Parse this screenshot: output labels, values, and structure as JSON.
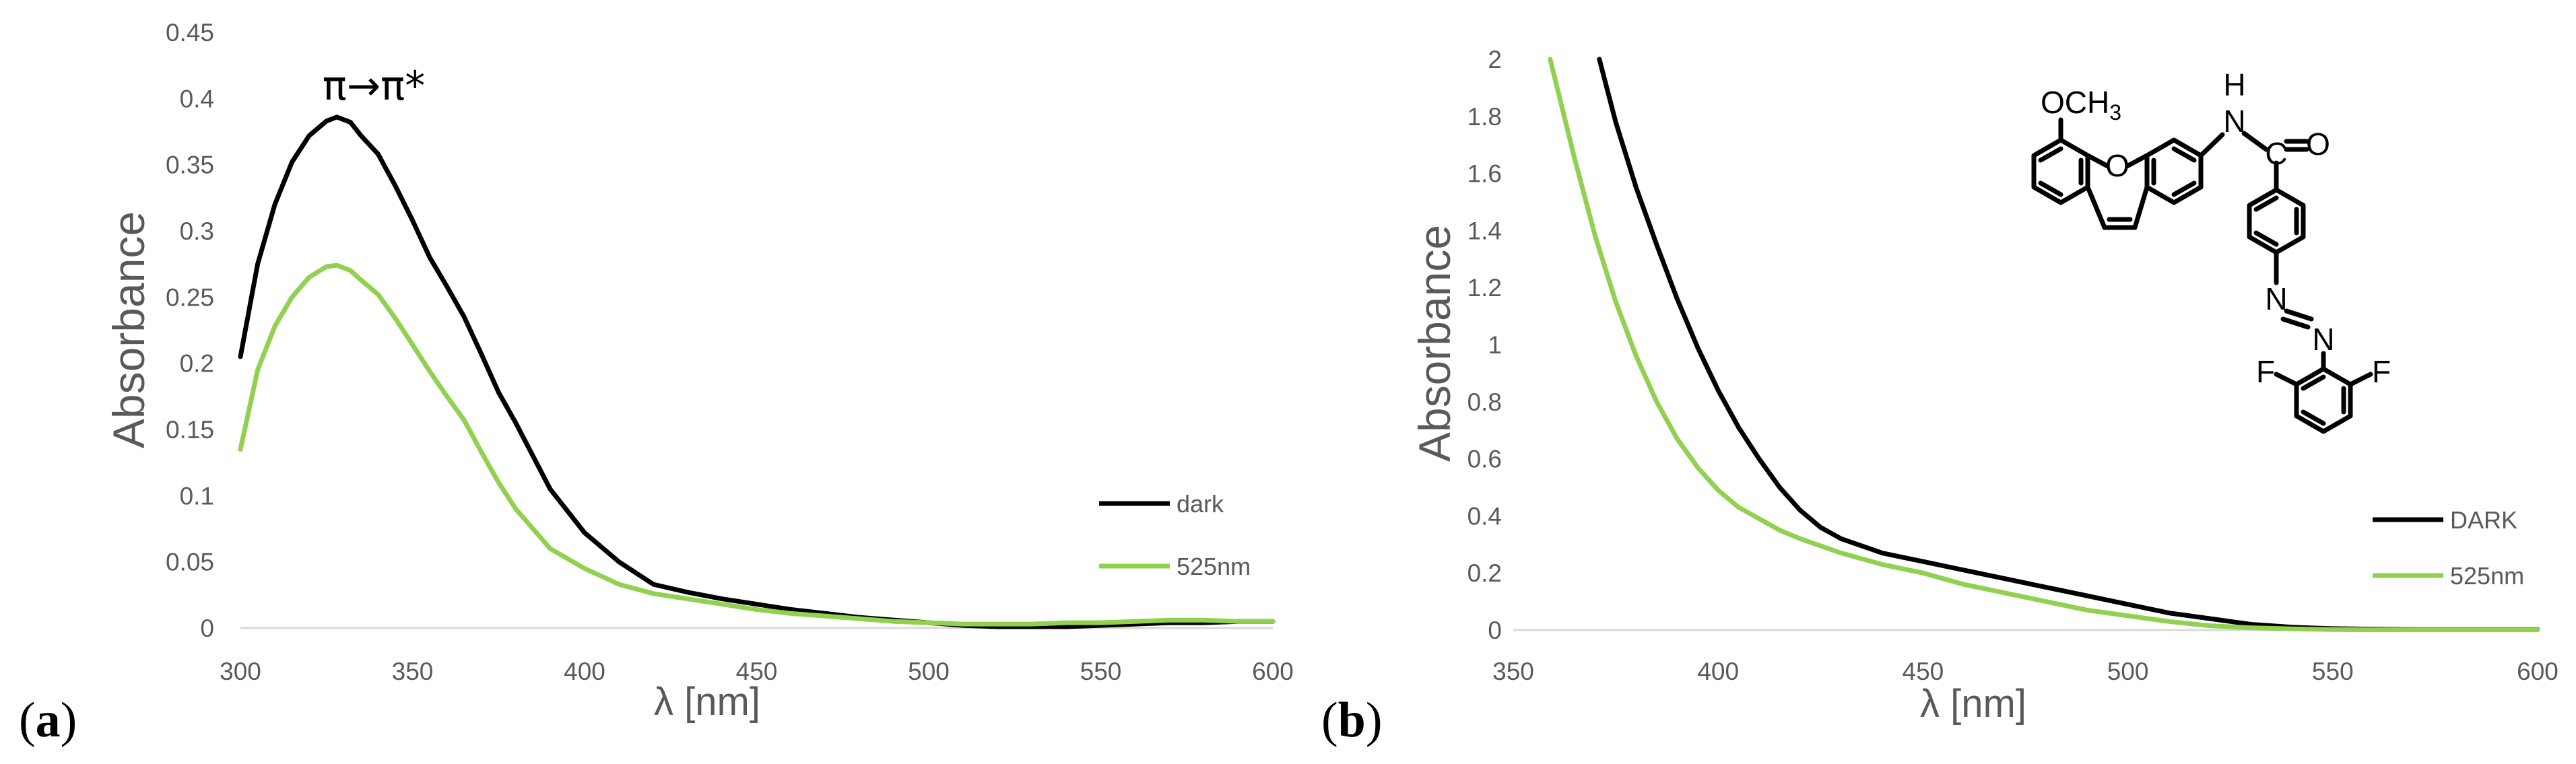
{
  "chart_data": [
    {
      "type": "line",
      "panel_label": "(a)",
      "panel_letter": "a",
      "title": "",
      "xlabel": "λ [nm]",
      "ylabel": "Absorbance",
      "xlim": [
        300,
        600
      ],
      "ylim": [
        0,
        0.45
      ],
      "x_ticks": [
        300,
        350,
        400,
        450,
        500,
        550,
        600
      ],
      "y_ticks": [
        0,
        0.05,
        0.1,
        0.15,
        0.2,
        0.25,
        0.3,
        0.35,
        0.4,
        0.45
      ],
      "x_tick_labels": [
        "300",
        "350",
        "400",
        "450",
        "500",
        "550",
        "600"
      ],
      "y_tick_labels": [
        "0",
        "0.05",
        "0.1",
        "0.15",
        "0.2",
        "0.25",
        "0.3",
        "0.35",
        "0.4",
        "0.45"
      ],
      "grid": false,
      "legend_position": "bottom-right",
      "annotation": "π→π*",
      "series": [
        {
          "name": "dark",
          "color": "#000000",
          "x": [
            300,
            305,
            310,
            315,
            320,
            325,
            328,
            332,
            335,
            340,
            345,
            350,
            355,
            360,
            365,
            370,
            375,
            380,
            390,
            400,
            410,
            420,
            430,
            440,
            450,
            460,
            470,
            480,
            490,
            500,
            510,
            520,
            530,
            540,
            550,
            560,
            570,
            580,
            590,
            600
          ],
          "values": [
            0.205,
            0.275,
            0.32,
            0.352,
            0.372,
            0.383,
            0.386,
            0.382,
            0.372,
            0.358,
            0.334,
            0.308,
            0.28,
            0.258,
            0.235,
            0.207,
            0.178,
            0.155,
            0.105,
            0.072,
            0.05,
            0.033,
            0.027,
            0.022,
            0.018,
            0.014,
            0.011,
            0.008,
            0.006,
            0.004,
            0.002,
            0.001,
            0.001,
            0.001,
            0.002,
            0.003,
            0.004,
            0.004,
            0.005,
            0.005
          ]
        },
        {
          "name": "525nm",
          "color": "#92d050",
          "x": [
            300,
            305,
            310,
            315,
            320,
            325,
            328,
            332,
            335,
            340,
            345,
            350,
            355,
            360,
            365,
            370,
            375,
            380,
            390,
            400,
            410,
            420,
            430,
            440,
            450,
            460,
            470,
            480,
            490,
            500,
            510,
            520,
            530,
            540,
            550,
            560,
            570,
            580,
            590,
            600
          ],
          "values": [
            0.135,
            0.195,
            0.228,
            0.25,
            0.265,
            0.273,
            0.274,
            0.27,
            0.263,
            0.252,
            0.234,
            0.214,
            0.194,
            0.175,
            0.157,
            0.133,
            0.11,
            0.09,
            0.06,
            0.045,
            0.033,
            0.026,
            0.022,
            0.018,
            0.014,
            0.011,
            0.009,
            0.007,
            0.005,
            0.004,
            0.003,
            0.003,
            0.003,
            0.004,
            0.004,
            0.005,
            0.006,
            0.006,
            0.005,
            0.005
          ]
        }
      ]
    },
    {
      "type": "line",
      "panel_label": "(b)",
      "panel_letter": "b",
      "title": "",
      "xlabel": "λ [nm]",
      "ylabel": "Absorbance",
      "xlim": [
        350,
        600
      ],
      "ylim": [
        0,
        2
      ],
      "x_ticks": [
        350,
        400,
        450,
        500,
        550,
        600
      ],
      "y_ticks": [
        0,
        0.2,
        0.4,
        0.6,
        0.8,
        1.0,
        1.2,
        1.4,
        1.6,
        1.8,
        2.0
      ],
      "x_tick_labels": [
        "350",
        "400",
        "450",
        "500",
        "550",
        "600"
      ],
      "y_tick_labels": [
        "0",
        "0.2",
        "0.4",
        "0.6",
        "0.8",
        "1",
        "1.2",
        "1.4",
        "1.6",
        "1.8",
        "2"
      ],
      "grid": false,
      "legend_position": "bottom-right",
      "series": [
        {
          "name": "DARK",
          "color": "#000000",
          "x": [
            371,
            375,
            380,
            385,
            390,
            395,
            400,
            405,
            410,
            415,
            420,
            425,
            430,
            440,
            450,
            460,
            470,
            480,
            490,
            500,
            510,
            520,
            530,
            540,
            550,
            560,
            570,
            580,
            590,
            600
          ],
          "values": [
            2.0,
            1.78,
            1.55,
            1.35,
            1.16,
            0.99,
            0.84,
            0.71,
            0.6,
            0.5,
            0.42,
            0.36,
            0.32,
            0.27,
            0.24,
            0.21,
            0.18,
            0.15,
            0.12,
            0.09,
            0.06,
            0.04,
            0.02,
            0.01,
            0.005,
            0.003,
            0.002,
            0.002,
            0.002,
            0.002
          ]
        },
        {
          "name": "525nm",
          "color": "#92d050",
          "x": [
            359,
            365,
            370,
            375,
            380,
            385,
            390,
            395,
            400,
            405,
            410,
            415,
            420,
            430,
            440,
            450,
            460,
            470,
            480,
            490,
            500,
            510,
            520,
            530,
            540,
            550,
            560,
            570,
            580,
            590,
            600
          ],
          "values": [
            2.0,
            1.65,
            1.38,
            1.15,
            0.96,
            0.8,
            0.67,
            0.57,
            0.49,
            0.43,
            0.39,
            0.35,
            0.32,
            0.27,
            0.23,
            0.2,
            0.16,
            0.13,
            0.1,
            0.07,
            0.05,
            0.03,
            0.015,
            0.008,
            0.004,
            0.002,
            0.001,
            0.001,
            0.001,
            0.001,
            0.001
          ]
        }
      ]
    }
  ],
  "structure": {
    "atoms": [
      "OCH",
      "3",
      "O",
      "H",
      "N",
      "C",
      "O",
      "N",
      "N",
      "F",
      "F"
    ]
  }
}
